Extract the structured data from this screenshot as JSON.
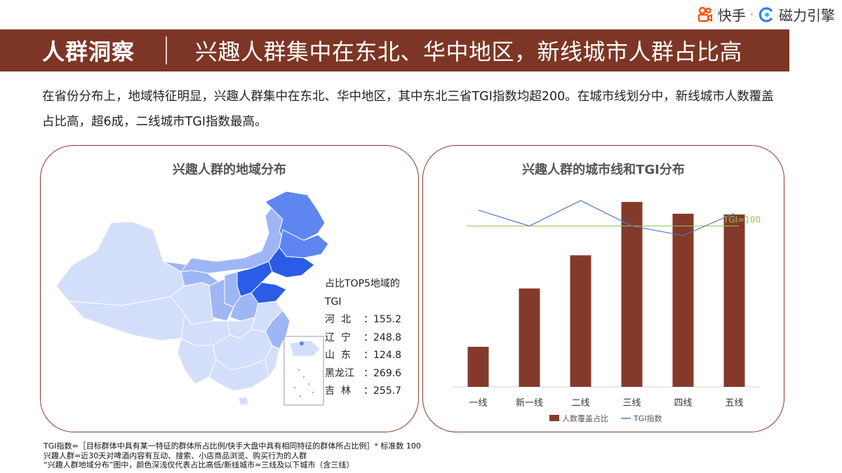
{
  "brand": {
    "kuaishou": "快手",
    "separator": "·",
    "cili": "磁力引擎"
  },
  "header": {
    "section": "人群洞察",
    "headline": "兴趣人群集中在东北、华中地区，新线城市人群占比高"
  },
  "intro": "在省份分布上，地域特征明显，兴趣人群集中在东北、华中地区，其中东北三省TGI指数均超200。在城市线划分中，新线城市人数覆盖占比高，超6成，二线城市TGI指数最高。",
  "map_panel": {
    "title": "兴趣人群的地域分布",
    "top5_title": "占比TOP5地域的TGI",
    "top5": [
      {
        "province": "河北",
        "value": "155.2"
      },
      {
        "province": "辽宁",
        "value": "248.8"
      },
      {
        "province": "山东",
        "value": "124.8"
      },
      {
        "province": "黑龙江",
        "value": "269.6"
      },
      {
        "province": "吉林",
        "value": "255.7"
      }
    ],
    "colors": {
      "dark": "#2a5ce8",
      "mid": "#5f86f0",
      "light": "#9fb6f5",
      "pale": "#d3defb",
      "border": "#ffffff"
    }
  },
  "chart_panel": {
    "title": "兴趣人群的城市线和TGI分布"
  },
  "chart_data": {
    "type": "bar",
    "title": "兴趣人群的城市线和TGI分布",
    "categories": [
      "一线",
      "新一线",
      "二线",
      "三线",
      "四线",
      "五线"
    ],
    "series": [
      {
        "name": "人数覆盖占比",
        "type": "bar",
        "color": "#843a2a",
        "values": [
          10.5,
          25.8,
          34.5,
          48.5,
          45.4,
          45.2
        ]
      },
      {
        "name": "TGI指数",
        "type": "line",
        "color": "#4a7bd0",
        "values": [
          105,
          100,
          108,
          100,
          97,
          104
        ]
      }
    ],
    "reference_line": {
      "label": "TGI=100",
      "value": 100,
      "color": "#92c353"
    },
    "legend_position": "bottom",
    "grid": false
  },
  "footnotes": [
    "TGI指数=［目标群体中具有某一特征的群体所占比例/快手大盘中具有相同特征的群体所占比例］* 标准数 100",
    "兴趣人群=近30天对啤酒内容有互动、搜索、小店商品浏览、购买行为的人群",
    "“兴趣人群地域分布”图中，颜色深浅仅代表占比高低/新线城市=三线及以下城市（含三线）"
  ]
}
